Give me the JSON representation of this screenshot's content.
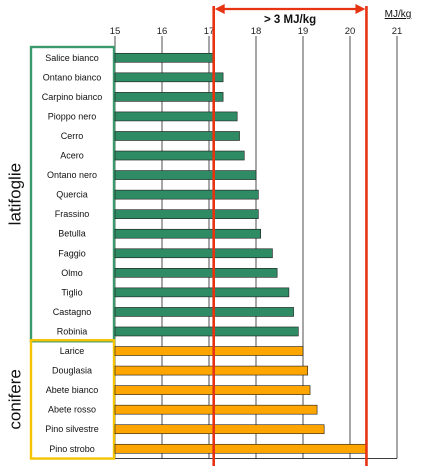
{
  "chart_data": {
    "type": "bar",
    "orientation": "horizontal",
    "unit_label": "MJ/kg",
    "xlim": [
      15,
      21
    ],
    "xticks": [
      "15",
      "16",
      "17",
      "18",
      "19",
      "20",
      "21"
    ],
    "grid": "vertical",
    "categories": [
      "Salice bianco",
      "Ontano bianco",
      "Carpino bianco",
      "Pioppo nero",
      "Cerro",
      "Acero",
      "Ontano nero",
      "Quercia",
      "Frassino",
      "Betulla",
      "Faggio",
      "Olmo",
      "Tiglio",
      "Castagno",
      "Robinia",
      "Larice",
      "Douglasia",
      "Abete bianco",
      "Abete rosso",
      "Pino silvestre",
      "Pino strobo"
    ],
    "values": [
      17.1,
      17.3,
      17.3,
      17.6,
      17.65,
      17.75,
      18.0,
      18.05,
      18.05,
      18.1,
      18.35,
      18.45,
      18.7,
      18.8,
      18.9,
      19.0,
      19.1,
      19.15,
      19.3,
      19.45,
      20.35
    ],
    "groups": [
      {
        "label": "latifoglie",
        "start": 0,
        "end": 14,
        "bar_color": "#2e8b64",
        "box_color": "#3a9a6e"
      },
      {
        "label": "conifere",
        "start": 15,
        "end": 20,
        "bar_color": "#ffa500",
        "box_color": "#f5c400"
      }
    ],
    "range_annotation": {
      "label": "> 3 MJ/kg",
      "from": 17.1,
      "to": 20.35,
      "color": "#e63312"
    }
  }
}
